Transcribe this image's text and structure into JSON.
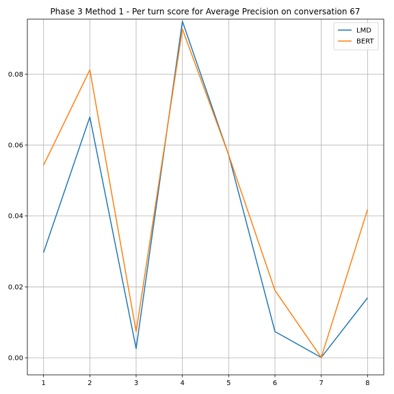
{
  "chart_data": {
    "type": "line",
    "title": "Phase 3 Method 1 - Per turn score for Average Precision on conversation 67",
    "xlabel": "",
    "ylabel": "",
    "x": [
      1,
      2,
      3,
      4,
      5,
      6,
      7,
      8
    ],
    "x_ticks": [
      "1",
      "2",
      "3",
      "4",
      "5",
      "6",
      "7",
      "8"
    ],
    "y_ticks": [
      "0.00",
      "0.02",
      "0.04",
      "0.06",
      "0.08"
    ],
    "xlim": [
      0.65,
      8.35
    ],
    "ylim": [
      -0.0048,
      0.0955
    ],
    "grid": true,
    "legend_position": "top-right",
    "series": [
      {
        "name": "LMD",
        "color": "#1f77b4",
        "values": [
          0.0297,
          0.0679,
          0.0026,
          0.0949,
          0.0572,
          0.0074,
          0.0001,
          0.0169
        ]
      },
      {
        "name": "BERT",
        "color": "#ff7f0e",
        "values": [
          0.0543,
          0.0812,
          0.0074,
          0.0927,
          0.0572,
          0.019,
          0.0001,
          0.0418
        ]
      }
    ]
  }
}
